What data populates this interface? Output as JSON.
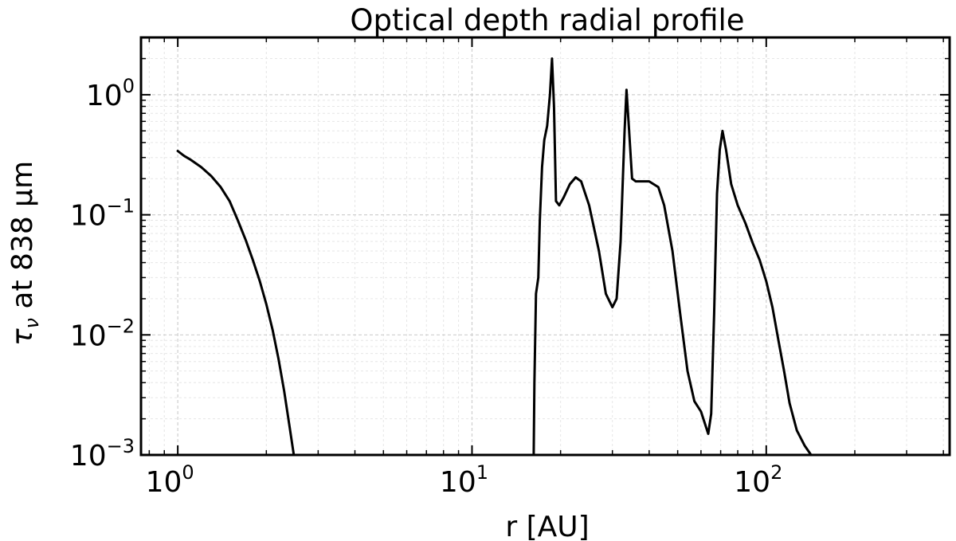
{
  "chart_data": {
    "type": "line",
    "title": "Optical depth radial profile",
    "xlabel": "r [AU]",
    "ylabel": "τ",
    "ylabel_sub": "ν",
    "ylabel_rest": " at 838 μm",
    "xscale": "log",
    "yscale": "log",
    "xlim": [
      0.75,
      420
    ],
    "ylim": [
      0.001,
      3
    ],
    "grid": true,
    "x_ticks": [
      {
        "value": 1,
        "base": "10",
        "exp": "0"
      },
      {
        "value": 10,
        "base": "10",
        "exp": "1"
      },
      {
        "value": 100,
        "base": "10",
        "exp": "2"
      }
    ],
    "y_ticks": [
      {
        "value": 0.001,
        "base": "10",
        "exp": "−3"
      },
      {
        "value": 0.01,
        "base": "10",
        "exp": "−2"
      },
      {
        "value": 0.1,
        "base": "10",
        "exp": "−1"
      },
      {
        "value": 1,
        "base": "10",
        "exp": "0"
      }
    ],
    "series": [
      {
        "color": "#000000",
        "segments": [
          [
            [
              1.0,
              0.34
            ],
            [
              1.05,
              0.31
            ],
            [
              1.1,
              0.29
            ],
            [
              1.2,
              0.25
            ],
            [
              1.3,
              0.21
            ],
            [
              1.4,
              0.17
            ],
            [
              1.5,
              0.13
            ],
            [
              1.6,
              0.09
            ],
            [
              1.7,
              0.062
            ],
            [
              1.8,
              0.042
            ],
            [
              1.9,
              0.028
            ],
            [
              2.0,
              0.018
            ],
            [
              2.1,
              0.011
            ],
            [
              2.2,
              0.0063
            ],
            [
              2.3,
              0.0034
            ],
            [
              2.4,
              0.0017
            ],
            [
              2.48,
              0.001
            ]
          ],
          [
            [
              16.2,
              0.001
            ],
            [
              16.3,
              0.004
            ],
            [
              16.5,
              0.022
            ],
            [
              16.8,
              0.03
            ],
            [
              17.0,
              0.09
            ],
            [
              17.3,
              0.25
            ],
            [
              17.6,
              0.42
            ],
            [
              18.0,
              0.55
            ],
            [
              18.4,
              1.0
            ],
            [
              18.7,
              2.0
            ],
            [
              19.0,
              0.8
            ],
            [
              19.3,
              0.13
            ],
            [
              19.8,
              0.12
            ],
            [
              20.5,
              0.14
            ],
            [
              21.5,
              0.18
            ],
            [
              22.5,
              0.205
            ],
            [
              23.5,
              0.19
            ],
            [
              25.0,
              0.12
            ],
            [
              27.0,
              0.05
            ],
            [
              28.5,
              0.022
            ],
            [
              30.0,
              0.017
            ],
            [
              31.0,
              0.02
            ],
            [
              32.0,
              0.06
            ],
            [
              33.0,
              0.5
            ],
            [
              33.5,
              1.1
            ],
            [
              34.2,
              0.5
            ],
            [
              35.0,
              0.2
            ],
            [
              36.0,
              0.19
            ],
            [
              40.0,
              0.19
            ],
            [
              43.0,
              0.17
            ],
            [
              45.0,
              0.12
            ],
            [
              48.0,
              0.05
            ],
            [
              51.0,
              0.015
            ],
            [
              54.0,
              0.005
            ],
            [
              57.0,
              0.0028
            ],
            [
              60.0,
              0.0023
            ],
            [
              62.0,
              0.0018
            ],
            [
              63.5,
              0.0015
            ],
            [
              65.0,
              0.0022
            ],
            [
              66.5,
              0.015
            ],
            [
              68.0,
              0.15
            ],
            [
              69.5,
              0.35
            ],
            [
              71.0,
              0.5
            ],
            [
              73.0,
              0.35
            ],
            [
              76.0,
              0.18
            ],
            [
              80.0,
              0.12
            ],
            [
              85.0,
              0.085
            ],
            [
              90.0,
              0.058
            ],
            [
              95.0,
              0.042
            ],
            [
              100.0,
              0.028
            ],
            [
              105.0,
              0.017
            ],
            [
              110.0,
              0.009
            ],
            [
              115.0,
              0.005
            ],
            [
              120.0,
              0.0027
            ],
            [
              127.0,
              0.0016
            ],
            [
              135.0,
              0.0012
            ],
            [
              142.0,
              0.001
            ]
          ]
        ]
      }
    ]
  }
}
